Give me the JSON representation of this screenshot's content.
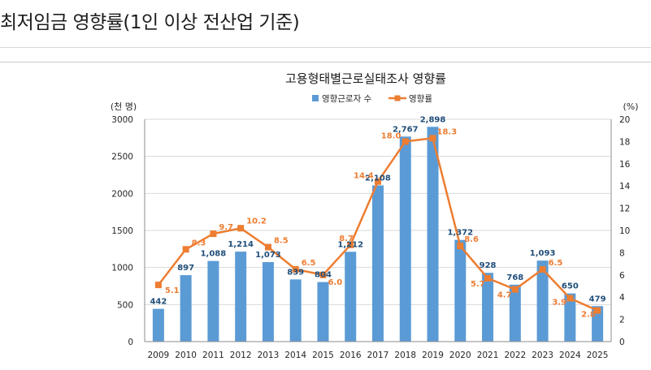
{
  "page": {
    "heading": "최저임금 영향률(1인 이상 전산업 기준)"
  },
  "colors": {
    "bar": "#5b9bd5",
    "line": "#ed7d31",
    "bar_label": "#1f4e79",
    "line_label": "#ed7d31",
    "axis_text": "#262626",
    "grid": "#d9d9d9"
  },
  "chart_data": {
    "type": "bar",
    "title": "고용형태별근로실태조사 영향률",
    "legend_position": "top-center",
    "categories": [
      "2009",
      "2010",
      "2011",
      "2012",
      "2013",
      "2014",
      "2015",
      "2016",
      "2017",
      "2018",
      "2019",
      "2020",
      "2021",
      "2022",
      "2023",
      "2024",
      "2025"
    ],
    "series": [
      {
        "name": "영향근로자 수",
        "type": "bar",
        "axis": "left",
        "values": [
          442,
          897,
          1088,
          1214,
          1073,
          839,
          804,
          1212,
          2108,
          2767,
          2898,
          1372,
          928,
          768,
          1093,
          650,
          479
        ],
        "labels": [
          "442",
          "897",
          "1,088",
          "1,214",
          "1,073",
          "839",
          "804",
          "1,212",
          "2,108",
          "2,767",
          "2,898",
          "1,372",
          "928",
          "768",
          "1,093",
          "650",
          "479"
        ]
      },
      {
        "name": "영향률",
        "type": "line",
        "axis": "right",
        "values": [
          5.1,
          8.3,
          9.7,
          10.2,
          8.5,
          6.5,
          6.0,
          8.7,
          14.4,
          18.0,
          18.3,
          8.6,
          5.7,
          4.7,
          6.5,
          3.9,
          2.8
        ],
        "labels": [
          "5.1",
          "8.3",
          "9.7",
          "10.2",
          "8.5",
          "6.5",
          "6.0",
          "8.7",
          "14.4",
          "18.0",
          "18.3",
          "8.6",
          "5.7",
          "4.7",
          "6.5",
          "3.9",
          "2.8"
        ]
      }
    ],
    "y_left": {
      "label": "(천 명)",
      "range": [
        0,
        3000
      ],
      "ticks": [
        0,
        500,
        1000,
        1500,
        2000,
        2500,
        3000
      ],
      "tick_labels": [
        "0",
        "500",
        "1000",
        "1500",
        "2000",
        "2500",
        "3000"
      ]
    },
    "y_right": {
      "label": "(%)",
      "range": [
        0,
        20
      ],
      "ticks": [
        0,
        2,
        4,
        6,
        8,
        10,
        12,
        14,
        16,
        18,
        20
      ],
      "tick_labels": [
        "0",
        "2",
        "4",
        "6",
        "8",
        "10",
        "12",
        "14",
        "16",
        "18",
        "20"
      ]
    },
    "grid": true
  }
}
